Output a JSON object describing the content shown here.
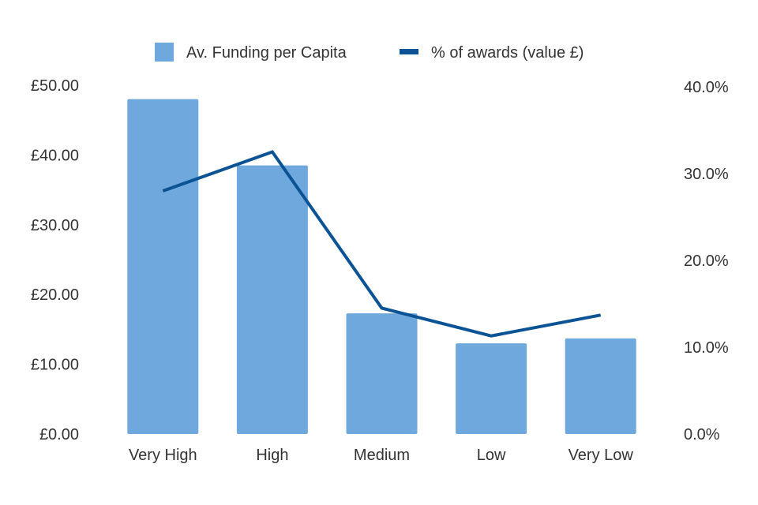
{
  "colors": {
    "bar": "#6fa8dc",
    "line": "#0b5394",
    "text": "#333333",
    "background": "#ffffff"
  },
  "legend": {
    "bar_label": "Av. Funding per Capita",
    "line_label": "% of awards (value £)"
  },
  "chart_data": {
    "type": "bar",
    "categories": [
      "Very High",
      "High",
      "Medium",
      "Low",
      "Very Low"
    ],
    "series": [
      {
        "name": "Av. Funding per Capita",
        "type": "bar",
        "axis": "left",
        "values": [
          48.0,
          38.5,
          17.3,
          13.0,
          13.7
        ]
      },
      {
        "name": "% of awards (value £)",
        "type": "line",
        "axis": "right",
        "values": [
          28.0,
          32.5,
          14.5,
          11.3,
          13.7
        ]
      }
    ],
    "y_left": {
      "min": 0,
      "max": 50,
      "ticks": [
        0,
        10,
        20,
        30,
        40,
        50
      ],
      "tick_labels": [
        "£0.00",
        "£10.00",
        "£20.00",
        "£30.00",
        "£40.00",
        "£50.00"
      ]
    },
    "y_right": {
      "min": 0,
      "max": 40,
      "ticks": [
        0,
        10,
        20,
        30,
        40
      ],
      "tick_labels": [
        "0.0%",
        "10.0%",
        "20.0%",
        "30.0%",
        "40.0%"
      ]
    },
    "legend_position": "top",
    "grid": false
  }
}
